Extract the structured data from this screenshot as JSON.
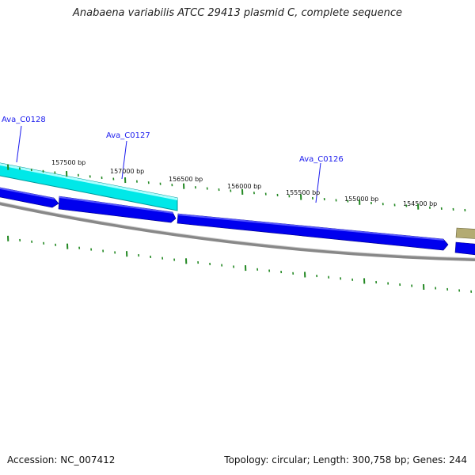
{
  "header": {
    "title": "Anabaena variabilis ATCC 29413 plasmid C, complete sequence"
  },
  "footer": {
    "accession": "Accession: NC_007412",
    "summary": "Topology: circular; Length: 300,758 bp; Genes: 244"
  },
  "ticks": {
    "labels": [
      "157500 bp",
      "157000 bp",
      "156500 bp",
      "156000 bp",
      "155500 bp",
      "155000 bp",
      "154500 bp"
    ]
  },
  "genes": [
    {
      "label": "Ava_C0128"
    },
    {
      "label": "Ava_C0127"
    },
    {
      "label": "Ava_C0126"
    }
  ],
  "colors": {
    "forward_gene": "#00eeee",
    "reverse_gene": "#0000ee",
    "other_feature": "#b0a870",
    "backbone": "#888888",
    "ticks": "#228822",
    "gene_label": "#1a1aee"
  }
}
